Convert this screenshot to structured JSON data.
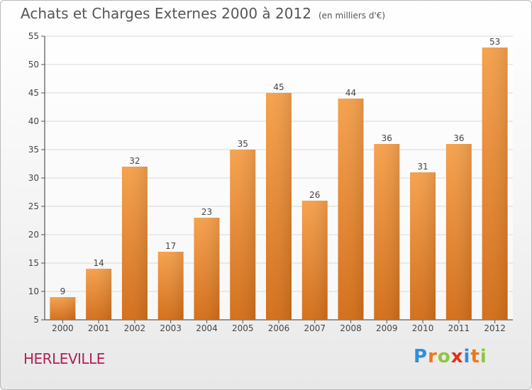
{
  "title": "Achats et Charges Externes 2000 à 2012",
  "unit_note": "(en milliers d'€)",
  "commune": "HERLEVILLE",
  "logo": {
    "letters": [
      {
        "ch": "P",
        "color": "#2f8fd8"
      },
      {
        "ch": "r",
        "color": "#e87a1d"
      },
      {
        "ch": "o",
        "color": "#8cc63f"
      },
      {
        "ch": "x",
        "color": "#e0301e"
      },
      {
        "ch": "i",
        "color": "#2f8fd8"
      },
      {
        "ch": "t",
        "color": "#e87a1d"
      },
      {
        "ch": "i",
        "color": "#8cc63f"
      }
    ]
  },
  "chart_data": {
    "type": "bar",
    "title": "Achats et Charges Externes 2000 à 2012",
    "categories": [
      "2000",
      "2001",
      "2002",
      "2003",
      "2004",
      "2005",
      "2006",
      "2007",
      "2008",
      "2009",
      "2010",
      "2011",
      "2012"
    ],
    "values": [
      9,
      14,
      32,
      17,
      23,
      35,
      45,
      26,
      44,
      36,
      31,
      36,
      53
    ],
    "ylim": [
      5,
      55
    ],
    "yticks": [
      5,
      10,
      15,
      20,
      25,
      30,
      35,
      40,
      45,
      50,
      55
    ],
    "grid": true,
    "bar_color_top": "#f6a24e",
    "bar_color_bottom": "#d4701c"
  }
}
